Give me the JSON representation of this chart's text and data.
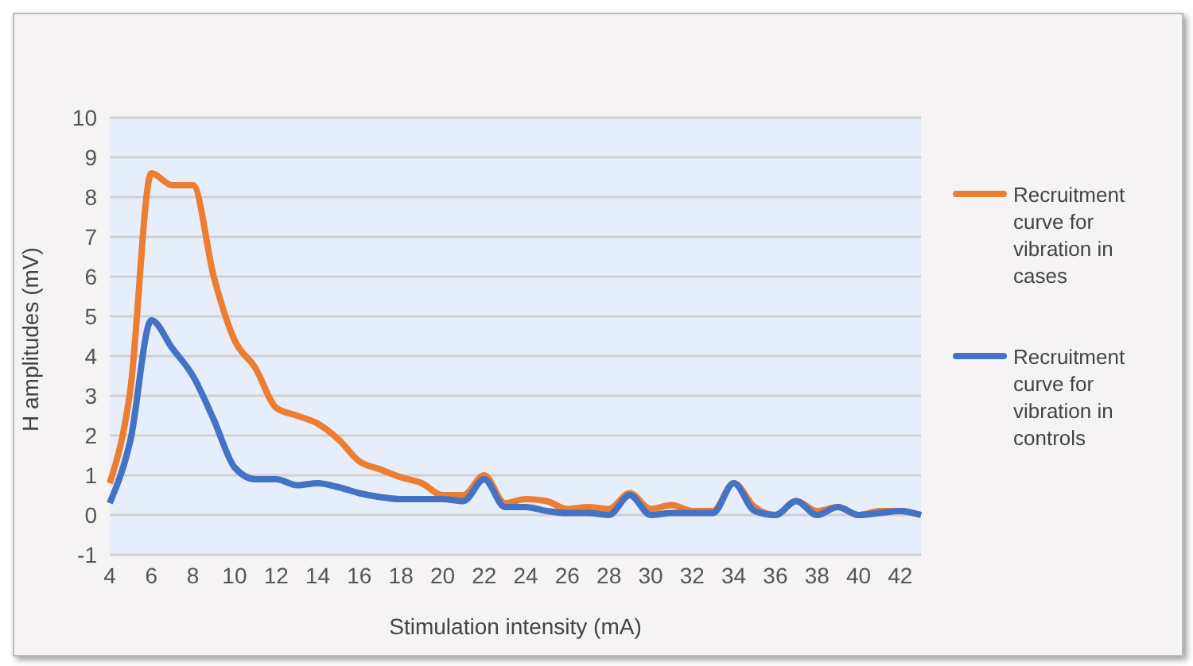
{
  "chart_data": {
    "type": "line",
    "xlabel": "Stimulation intensity (mA)",
    "ylabel": "H amplitudes (mV)",
    "categories": [
      "4",
      null,
      "6",
      null,
      "8",
      null,
      "10",
      null,
      "12",
      null,
      "14",
      null,
      "16",
      null,
      "18",
      null,
      "20",
      null,
      "22",
      null,
      "24",
      null,
      "26",
      null,
      "28",
      null,
      "30",
      null,
      "32",
      null,
      "34",
      null,
      "36",
      null,
      "38",
      null,
      "40",
      null,
      "42",
      null
    ],
    "series": [
      {
        "name": "Recruitment curve for vibration in cases",
        "color": "#ed7d31",
        "values": [
          0.8,
          3.2,
          8.6,
          8.3,
          8.3,
          6.0,
          4.4,
          3.7,
          2.7,
          2.5,
          2.3,
          1.9,
          1.35,
          1.15,
          0.95,
          0.8,
          0.5,
          0.5,
          1.0,
          0.3,
          0.4,
          0.35,
          0.15,
          0.2,
          0.15,
          0.55,
          0.15,
          0.25,
          0.1,
          0.1,
          0.8,
          0.2,
          0.0,
          0.35,
          0.1,
          0.2,
          0.0,
          0.1,
          0.1,
          0.0
        ]
      },
      {
        "name": "Recruitment curve for vibration in controls",
        "color": "#4472c4",
        "values": [
          0.3,
          1.9,
          4.9,
          4.2,
          3.5,
          2.4,
          1.2,
          0.9,
          0.9,
          0.75,
          0.8,
          0.7,
          0.55,
          0.45,
          0.4,
          0.4,
          0.4,
          0.35,
          0.9,
          0.2,
          0.2,
          0.1,
          0.05,
          0.05,
          0.0,
          0.5,
          0.0,
          0.05,
          0.05,
          0.05,
          0.8,
          0.1,
          0.0,
          0.35,
          0.0,
          0.2,
          0.0,
          0.05,
          0.1,
          0.0
        ]
      }
    ],
    "ylim": [
      -1,
      10
    ],
    "yticks": [
      -1,
      0,
      1,
      2,
      3,
      4,
      5,
      6,
      7,
      8,
      9,
      10
    ],
    "grid": "y",
    "legend": "right",
    "marker": "none",
    "line_style": "solid"
  }
}
